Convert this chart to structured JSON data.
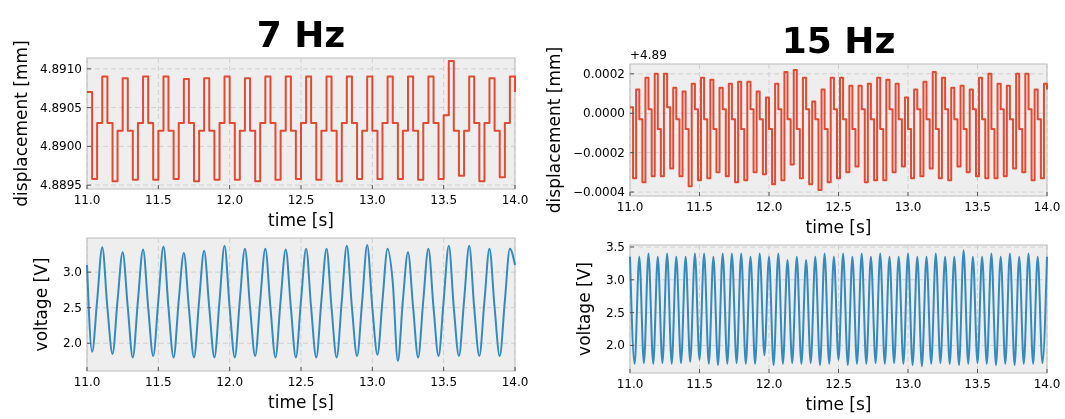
{
  "chart_data": [
    {
      "type": "step",
      "title": "7 Hz",
      "xlabel": "time [s]",
      "ylabel": "displacement [mm]",
      "grid": true,
      "xlim": [
        11,
        14
      ],
      "ylim": [
        4.88945,
        4.89114
      ],
      "xticks": [
        {
          "value": 11,
          "label": "11.0"
        },
        11.5,
        {
          "value": 12,
          "label": "12.0"
        },
        12.5,
        {
          "value": 13,
          "label": "13.0"
        },
        13.5,
        {
          "value": 14,
          "label": "14.0"
        }
      ],
      "yticks": [
        4.8895,
        {
          "value": 4.89,
          "label": "4.8900"
        },
        4.8905,
        {
          "value": 4.891,
          "label": "4.8910"
        }
      ],
      "series": [
        {
          "color": "#e24a33",
          "x": [
            11,
            11.036,
            11.071,
            11.107,
            11.143,
            11.179,
            11.214,
            11.25,
            11.286,
            11.321,
            11.357,
            11.393,
            11.429,
            11.464,
            11.5,
            11.536,
            11.571,
            11.607,
            11.643,
            11.679,
            11.714,
            11.75,
            11.786,
            11.821,
            11.857,
            11.893,
            11.929,
            11.964,
            12,
            12.036,
            12.071,
            12.107,
            12.143,
            12.179,
            12.214,
            12.25,
            12.286,
            12.321,
            12.357,
            12.393,
            12.429,
            12.464,
            12.5,
            12.536,
            12.571,
            12.607,
            12.643,
            12.679,
            12.714,
            12.75,
            12.786,
            12.821,
            12.857,
            12.893,
            12.929,
            12.964,
            13,
            13.036,
            13.071,
            13.107,
            13.143,
            13.179,
            13.214,
            13.25,
            13.286,
            13.321,
            13.357,
            13.393,
            13.429,
            13.464,
            13.5,
            13.536,
            13.571,
            13.607,
            13.643,
            13.679,
            13.714,
            13.75,
            13.786,
            13.821,
            13.857,
            13.893,
            13.929,
            13.964,
            14
          ],
          "values": [
            4.8907,
            4.88958,
            4.8903,
            4.8909,
            4.8903,
            4.88955,
            4.8902,
            4.89088,
            4.8902,
            4.88957,
            4.8903,
            4.8909,
            4.8903,
            4.88957,
            4.8902,
            4.8909,
            4.8902,
            4.88958,
            4.8903,
            4.89087,
            4.8903,
            4.88955,
            4.8902,
            4.89088,
            4.8902,
            4.88957,
            4.8903,
            4.8909,
            4.8903,
            4.88957,
            4.8902,
            4.89088,
            4.8902,
            4.88955,
            4.8903,
            4.8909,
            4.8903,
            4.88957,
            4.8902,
            4.8909,
            4.8902,
            4.88958,
            4.8903,
            4.8909,
            4.8903,
            4.88957,
            4.8902,
            4.8909,
            4.8902,
            4.88955,
            4.8903,
            4.8909,
            4.8903,
            4.88958,
            4.8902,
            4.8909,
            4.8902,
            4.88958,
            4.8903,
            4.8909,
            4.8903,
            4.88958,
            4.8902,
            4.8909,
            4.8902,
            4.88957,
            4.8903,
            4.8909,
            4.8903,
            4.88958,
            4.8904,
            4.8911,
            4.8902,
            4.88962,
            4.8902,
            4.8909,
            4.8903,
            4.88955,
            4.8903,
            4.89088,
            4.8902,
            4.8896,
            4.8903,
            4.8909,
            4.8907
          ]
        }
      ]
    },
    {
      "type": "step",
      "title": "15 Hz",
      "xlabel": "time [s]",
      "ylabel": "displacement [mm]",
      "annotations": [
        "+4.89"
      ],
      "grid": true,
      "xlim": [
        11,
        14
      ],
      "ylim": [
        -0.00042,
        0.00025
      ],
      "xticks": [
        {
          "value": 11,
          "label": "11.0"
        },
        11.5,
        {
          "value": 12,
          "label": "12.0"
        },
        12.5,
        {
          "value": 13,
          "label": "13.0"
        },
        13.5,
        {
          "value": 14,
          "label": "14.0"
        }
      ],
      "yticks": [
        {
          "value": -0.0004,
          "label": "−0.0004"
        },
        {
          "value": -0.0002,
          "label": "−0.0002"
        },
        {
          "value": 0,
          "label": "0.0000"
        },
        0.0002
      ],
      "series": [
        {
          "color": "#e24a33",
          "x": [
            11,
            11.022,
            11.044,
            11.067,
            11.089,
            11.111,
            11.133,
            11.156,
            11.178,
            11.2,
            11.222,
            11.244,
            11.267,
            11.289,
            11.311,
            11.333,
            11.356,
            11.378,
            11.4,
            11.422,
            11.444,
            11.467,
            11.489,
            11.511,
            11.533,
            11.556,
            11.578,
            11.6,
            11.622,
            11.644,
            11.667,
            11.689,
            11.711,
            11.733,
            11.756,
            11.778,
            11.8,
            11.822,
            11.844,
            11.867,
            11.889,
            11.911,
            11.933,
            11.956,
            11.978,
            12,
            12.022,
            12.044,
            12.067,
            12.089,
            12.111,
            12.133,
            12.156,
            12.178,
            12.2,
            12.222,
            12.244,
            12.267,
            12.289,
            12.311,
            12.333,
            12.356,
            12.378,
            12.4,
            12.422,
            12.444,
            12.467,
            12.489,
            12.511,
            12.533,
            12.556,
            12.578,
            12.6,
            12.622,
            12.644,
            12.667,
            12.689,
            12.711,
            12.733,
            12.756,
            12.778,
            12.8,
            12.822,
            12.844,
            12.867,
            12.889,
            12.911,
            12.933,
            12.956,
            12.978,
            13,
            13.022,
            13.044,
            13.067,
            13.089,
            13.111,
            13.133,
            13.156,
            13.178,
            13.2,
            13.222,
            13.244,
            13.267,
            13.289,
            13.311,
            13.333,
            13.356,
            13.378,
            13.4,
            13.422,
            13.444,
            13.467,
            13.489,
            13.511,
            13.533,
            13.556,
            13.578,
            13.6,
            13.622,
            13.644,
            13.667,
            13.689,
            13.711,
            13.733,
            13.756,
            13.778,
            13.8,
            13.822,
            13.844,
            13.867,
            13.889,
            13.911,
            13.933,
            13.956,
            13.978,
            14
          ],
          "values": [
            3e-05,
            -0.00033,
            0.00012,
            -3e-05,
            -0.00035,
            0.00018,
            2e-05,
            -0.00032,
            0.0002,
            -8e-05,
            -0.00032,
            0.0002,
            3e-05,
            -0.00028,
            0.00013,
            -3e-05,
            -0.00032,
            0.00011,
            -8e-05,
            -0.00037,
            0.00015,
            2e-05,
            -0.00034,
            0.00018,
            -3e-05,
            -0.00033,
            0.00017,
            -8e-05,
            -0.0003,
            0.00013,
            2e-05,
            -0.00032,
            0.00015,
            -3e-05,
            -0.00035,
            0.00016,
            -8e-05,
            -0.00034,
            0.00016,
            2e-05,
            -0.0003,
            0.00011,
            -3e-05,
            -0.00031,
            8e-05,
            -8e-05,
            -0.00036,
            0.00015,
            2e-05,
            -0.00034,
            0.00021,
            -3e-05,
            -0.00026,
            0.00022,
            -8e-05,
            -0.00033,
            0.00018,
            2e-05,
            -0.00036,
            6e-05,
            -3e-05,
            -0.00039,
            0.00012,
            -8e-05,
            -0.00035,
            0.00018,
            2e-05,
            -0.00033,
            0.00018,
            -3e-05,
            -0.0003,
            0.00014,
            -8e-05,
            -0.00027,
            0.00014,
            2e-05,
            -0.00035,
            0.00015,
            -3e-05,
            -0.00034,
            0.00018,
            -8e-05,
            -0.00034,
            0.00017,
            2e-05,
            -0.0003,
            0.00015,
            -3e-05,
            -0.00027,
            8e-05,
            -8e-05,
            -0.00033,
            0.00012,
            2e-05,
            -0.00032,
            0.00016,
            -3e-05,
            -0.00028,
            0.00021,
            -8e-05,
            -0.00033,
            0.00018,
            2e-05,
            -0.00034,
            0.00013,
            -3e-05,
            -0.00027,
            0.00014,
            -8e-05,
            -0.0003,
            0.00012,
            2e-05,
            -0.00032,
            0.00018,
            -3e-05,
            -0.00033,
            0.0002,
            -8e-05,
            -0.00033,
            0.00015,
            2e-05,
            -0.00032,
            0.00014,
            -3e-05,
            -0.00028,
            0.0002,
            -8e-05,
            -0.0003,
            0.0002,
            2e-05,
            -0.00034,
            0.00012,
            -3e-05,
            -0.00033,
            0.00015,
            0.00012
          ]
        }
      ]
    },
    {
      "type": "line",
      "xlabel": "time [s]",
      "ylabel": "voltage [V]",
      "grid": true,
      "xlim": [
        11,
        14
      ],
      "ylim": [
        1.61,
        3.48
      ],
      "xticks": [
        {
          "value": 11,
          "label": "11.0"
        },
        11.5,
        {
          "value": 12,
          "label": "12.0"
        },
        12.5,
        {
          "value": 13,
          "label": "13.0"
        },
        13.5,
        {
          "value": 14,
          "label": "14.0"
        }
      ],
      "yticks": [
        {
          "value": 2,
          "label": "2.0"
        },
        2.5,
        {
          "value": 3,
          "label": "3.0"
        }
      ],
      "series": [
        {
          "color": "#348abd",
          "x": [
            11,
            11.036,
            11.071,
            11.107,
            11.143,
            11.179,
            11.214,
            11.25,
            11.286,
            11.321,
            11.357,
            11.393,
            11.429,
            11.464,
            11.5,
            11.536,
            11.571,
            11.607,
            11.643,
            11.679,
            11.714,
            11.75,
            11.786,
            11.821,
            11.857,
            11.893,
            11.929,
            11.964,
            12,
            12.036,
            12.071,
            12.107,
            12.143,
            12.179,
            12.214,
            12.25,
            12.286,
            12.321,
            12.357,
            12.393,
            12.429,
            12.464,
            12.5,
            12.536,
            12.571,
            12.607,
            12.643,
            12.679,
            12.714,
            12.75,
            12.786,
            12.821,
            12.857,
            12.893,
            12.929,
            12.964,
            13,
            13.036,
            13.071,
            13.107,
            13.143,
            13.179,
            13.214,
            13.25,
            13.286,
            13.321,
            13.357,
            13.393,
            13.429,
            13.464,
            13.5,
            13.536,
            13.571,
            13.607,
            13.643,
            13.679,
            13.714,
            13.75,
            13.786,
            13.821,
            13.857,
            13.893,
            13.929,
            13.964,
            14
          ],
          "values": [
            3.1,
            1.88,
            2.6,
            3.35,
            2.5,
            1.85,
            2.6,
            3.28,
            2.5,
            1.8,
            2.6,
            3.32,
            2.5,
            1.82,
            2.6,
            3.36,
            2.5,
            1.8,
            2.6,
            3.27,
            2.5,
            1.8,
            2.6,
            3.3,
            2.5,
            1.8,
            2.6,
            3.37,
            2.5,
            1.8,
            2.6,
            3.33,
            2.5,
            1.82,
            2.6,
            3.33,
            2.5,
            1.8,
            2.6,
            3.32,
            2.5,
            1.8,
            2.6,
            3.33,
            2.5,
            1.8,
            2.6,
            3.33,
            2.5,
            1.8,
            2.6,
            3.37,
            2.5,
            1.82,
            2.6,
            3.38,
            2.5,
            1.84,
            2.6,
            3.33,
            2.86,
            1.75,
            2.6,
            3.28,
            2.5,
            1.8,
            2.6,
            3.33,
            2.5,
            1.82,
            2.6,
            3.37,
            2.5,
            1.82,
            2.6,
            3.37,
            2.5,
            1.82,
            2.6,
            3.33,
            2.5,
            1.82,
            2.6,
            3.33,
            3.1
          ]
        }
      ]
    },
    {
      "type": "line",
      "xlabel": "time [s]",
      "ylabel": "voltage [V]",
      "grid": true,
      "xlim": [
        11,
        14
      ],
      "ylim": [
        1.58,
        3.53
      ],
      "xticks": [
        {
          "value": 11,
          "label": "11.0"
        },
        11.5,
        {
          "value": 12,
          "label": "12.0"
        },
        12.5,
        {
          "value": 13,
          "label": "13.0"
        },
        13.5,
        {
          "value": 14,
          "label": "14.0"
        }
      ],
      "yticks": [
        {
          "value": 2,
          "label": "2.0"
        },
        2.5,
        {
          "value": 3,
          "label": "3.0"
        },
        3.5
      ],
      "series": [
        {
          "color": "#348abd",
          "x": [
            11,
            11.033,
            11.067,
            11.1,
            11.133,
            11.167,
            11.2,
            11.233,
            11.267,
            11.3,
            11.333,
            11.367,
            11.4,
            11.433,
            11.467,
            11.5,
            11.533,
            11.567,
            11.6,
            11.633,
            11.667,
            11.7,
            11.733,
            11.767,
            11.8,
            11.833,
            11.867,
            11.9,
            11.933,
            11.967,
            12,
            12.033,
            12.067,
            12.1,
            12.133,
            12.167,
            12.2,
            12.233,
            12.267,
            12.3,
            12.333,
            12.367,
            12.4,
            12.433,
            12.467,
            12.5,
            12.533,
            12.567,
            12.6,
            12.633,
            12.667,
            12.7,
            12.733,
            12.767,
            12.8,
            12.833,
            12.867,
            12.9,
            12.933,
            12.967,
            13,
            13.033,
            13.067,
            13.1,
            13.133,
            13.167,
            13.2,
            13.233,
            13.267,
            13.3,
            13.333,
            13.367,
            13.4,
            13.433,
            13.467,
            13.5,
            13.533,
            13.567,
            13.6,
            13.633,
            13.667,
            13.7,
            13.733,
            13.767,
            13.8,
            13.833,
            13.867,
            13.9,
            13.933,
            13.967,
            14
          ],
          "values": [
            3.35,
            1.72,
            3.35,
            1.73,
            3.4,
            1.72,
            3.35,
            1.73,
            3.4,
            1.72,
            3.35,
            1.73,
            3.35,
            1.75,
            3.4,
            1.78,
            3.4,
            1.72,
            3.35,
            1.7,
            3.4,
            1.72,
            3.4,
            1.73,
            3.4,
            1.72,
            3.35,
            1.72,
            3.4,
            1.85,
            3.35,
            1.7,
            3.4,
            1.72,
            3.3,
            1.73,
            3.35,
            1.72,
            3.3,
            1.73,
            3.35,
            1.7,
            3.4,
            1.72,
            3.35,
            1.78,
            3.4,
            1.7,
            3.35,
            1.72,
            3.4,
            1.72,
            3.35,
            1.73,
            3.4,
            1.72,
            3.35,
            1.73,
            3.35,
            1.72,
            3.4,
            1.7,
            3.35,
            1.68,
            3.35,
            1.72,
            3.4,
            1.73,
            3.35,
            1.72,
            3.35,
            1.7,
            3.45,
            1.72,
            3.35,
            1.73,
            3.35,
            1.72,
            3.4,
            1.7,
            3.35,
            1.72,
            3.4,
            1.7,
            3.35,
            1.72,
            3.4,
            1.72,
            3.35,
            1.73,
            3.35
          ]
        }
      ]
    }
  ]
}
